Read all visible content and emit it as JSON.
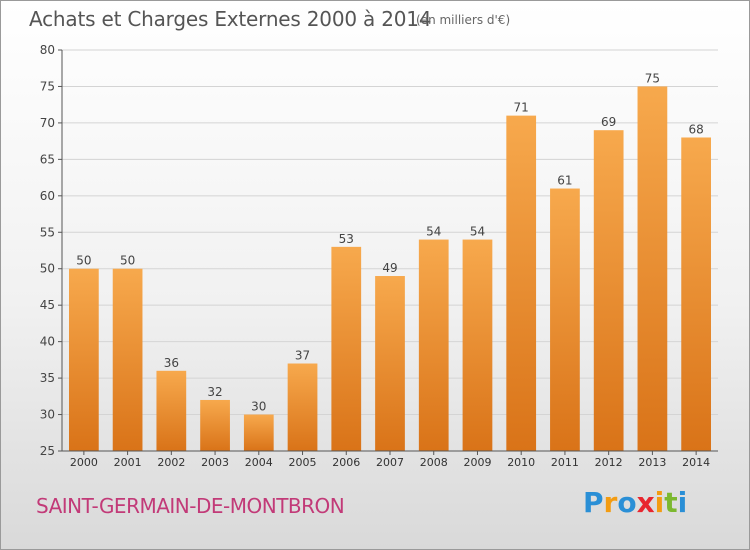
{
  "title": "Achats et Charges Externes 2000 à 2014",
  "unit_note": "(en milliers d'€)",
  "place_name": "SAINT-GERMAIN-DE-MONTBRON",
  "brand": {
    "letters": [
      "P",
      "r",
      "o",
      "x",
      "i",
      "t",
      "i"
    ],
    "colors": [
      "#2a8fd6",
      "#f39c12",
      "#2a8fd6",
      "#e8262f",
      "#f39c12",
      "#7cb82f",
      "#2a8fd6"
    ]
  },
  "chart_data": {
    "type": "bar",
    "categories": [
      "2000",
      "2001",
      "2002",
      "2003",
      "2004",
      "2005",
      "2006",
      "2007",
      "2008",
      "2009",
      "2010",
      "2011",
      "2012",
      "2013",
      "2014"
    ],
    "values": [
      50,
      50,
      36,
      32,
      30,
      37,
      53,
      49,
      54,
      54,
      71,
      61,
      69,
      75,
      68
    ],
    "title": "Achats et Charges Externes 2000 à 2014",
    "xlabel": "",
    "ylabel": "",
    "ylim": [
      25,
      80
    ],
    "yticks": [
      25,
      30,
      35,
      40,
      45,
      50,
      55,
      60,
      65,
      70,
      75,
      80
    ],
    "grid": true,
    "bar_color": "#f0952f",
    "data_labels": true
  }
}
